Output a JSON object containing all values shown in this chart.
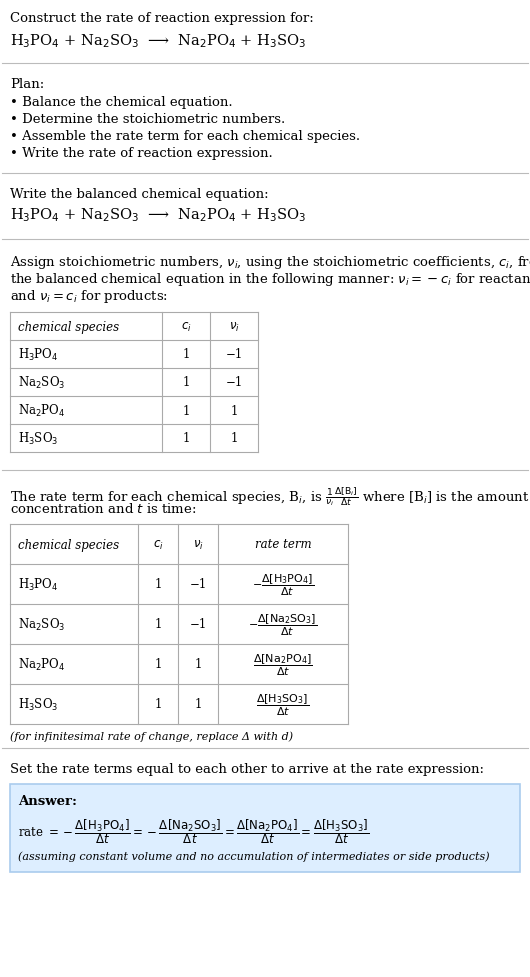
{
  "title_text": "Construct the rate of reaction expression for:",
  "reaction_equation": "H$_3$PO$_4$ + Na$_2$SO$_3$  ⟶  Na$_2$PO$_4$ + H$_3$SO$_3$",
  "plan_header": "Plan:",
  "plan_items": [
    "• Balance the chemical equation.",
    "• Determine the stoichiometric numbers.",
    "• Assemble the rate term for each chemical species.",
    "• Write the rate of reaction expression."
  ],
  "balanced_header": "Write the balanced chemical equation:",
  "balanced_eq": "H$_3$PO$_4$ + Na$_2$SO$_3$  ⟶  Na$_2$PO$_4$ + H$_3$SO$_3$",
  "stoich_intro_lines": [
    "Assign stoichiometric numbers, $\\nu_i$, using the stoichiometric coefficients, $c_i$, from",
    "the balanced chemical equation in the following manner: $\\nu_i = -c_i$ for reactants",
    "and $\\nu_i = c_i$ for products:"
  ],
  "table1_headers": [
    "chemical species",
    "$c_i$",
    "$\\nu_i$"
  ],
  "table1_rows": [
    [
      "H$_3$PO$_4$",
      "1",
      "−1"
    ],
    [
      "Na$_2$SO$_3$",
      "1",
      "−1"
    ],
    [
      "Na$_2$PO$_4$",
      "1",
      "1"
    ],
    [
      "H$_3$SO$_3$",
      "1",
      "1"
    ]
  ],
  "rate_term_intro_lines": [
    "The rate term for each chemical species, B$_i$, is $\\frac{1}{\\nu_i}\\frac{\\Delta[\\mathrm{B}_i]}{\\Delta t}$ where [B$_i$] is the amount",
    "concentration and $t$ is time:"
  ],
  "table2_headers": [
    "chemical species",
    "$c_i$",
    "$\\nu_i$",
    "rate term"
  ],
  "table2_rows": [
    [
      "H$_3$PO$_4$",
      "1",
      "−1",
      "$-\\dfrac{\\Delta[\\mathrm{H_3PO_4}]}{\\Delta t}$"
    ],
    [
      "Na$_2$SO$_3$",
      "1",
      "−1",
      "$-\\dfrac{\\Delta[\\mathrm{Na_2SO_3}]}{\\Delta t}$"
    ],
    [
      "Na$_2$PO$_4$",
      "1",
      "1",
      "$\\dfrac{\\Delta[\\mathrm{Na_2PO_4}]}{\\Delta t}$"
    ],
    [
      "H$_3$SO$_3$",
      "1",
      "1",
      "$\\dfrac{\\Delta[\\mathrm{H_3SO_3}]}{\\Delta t}$"
    ]
  ],
  "infinitesimal_note": "(for infinitesimal rate of change, replace Δ with d)",
  "set_equal_text": "Set the rate terms equal to each other to arrive at the rate expression:",
  "answer_label": "Answer:",
  "answer_box_color": "#ddeeff",
  "answer_border_color": "#aaccee",
  "rate_expression_parts": [
    "rate $= -\\dfrac{\\Delta[\\mathrm{H_3PO_4}]}{\\Delta t} = -\\dfrac{\\Delta[\\mathrm{Na_2SO_3}]}{\\Delta t} = \\dfrac{\\Delta[\\mathrm{Na_2PO_4}]}{\\Delta t} = \\dfrac{\\Delta[\\mathrm{H_3SO_3}]}{\\Delta t}$"
  ],
  "assuming_note": "(assuming constant volume and no accumulation of intermediates or side products)",
  "bg_color": "#ffffff",
  "text_color": "#000000",
  "table_line_color": "#aaaaaa",
  "separator_color": "#bbbbbb"
}
